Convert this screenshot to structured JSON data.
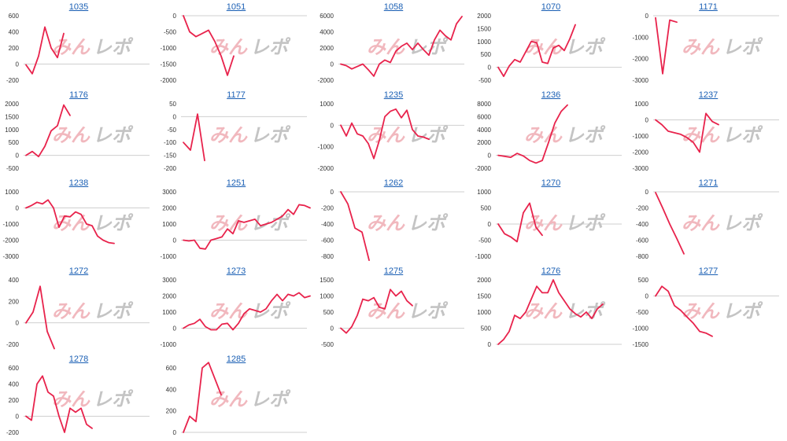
{
  "colors": {
    "line": "#e8234c",
    "link": "#1a5fb4",
    "watermark_pink": "#f1b8be",
    "watermark_gray": "#c4c4c4",
    "axis": "#cfcfcf"
  },
  "watermark": {
    "part1": "みん",
    "part2": "レポ"
  },
  "chart_data": [
    {
      "type": "line",
      "title": "1035",
      "ylim": [
        -200,
        600
      ],
      "yticks": [
        -200,
        0,
        200,
        400,
        600
      ],
      "values": [
        -10,
        -120,
        100,
        460,
        200,
        80,
        380
      ]
    },
    {
      "type": "line",
      "title": "1051",
      "ylim": [
        -2000,
        0
      ],
      "yticks": [
        -2000,
        -1500,
        -1000,
        -500,
        0
      ],
      "values": [
        0,
        -500,
        -650,
        -550,
        -450,
        -800,
        -1250,
        -1850,
        -1250
      ]
    },
    {
      "type": "line",
      "title": "1058",
      "ylim": [
        -2000,
        6000
      ],
      "yticks": [
        -2000,
        0,
        2000,
        4000,
        6000
      ],
      "values": [
        0,
        -200,
        -600,
        -300,
        0,
        -700,
        -1500,
        0,
        500,
        200,
        1600,
        2200,
        2600,
        1800,
        2600,
        1800,
        1100,
        3000,
        4200,
        3500,
        3000,
        5000,
        5900
      ]
    },
    {
      "type": "line",
      "title": "1070",
      "ylim": [
        -500,
        2000
      ],
      "yticks": [
        -500,
        0,
        500,
        1000,
        1500,
        2000
      ],
      "values": [
        0,
        -350,
        50,
        300,
        200,
        600,
        1000,
        950,
        200,
        150,
        750,
        850,
        650,
        1100,
        1650
      ]
    },
    {
      "type": "line",
      "title": "1171",
      "ylim": [
        -3000,
        0
      ],
      "yticks": [
        -3000,
        -2000,
        -1000,
        0
      ],
      "values": [
        -100,
        -2700,
        -200,
        -300
      ]
    },
    {
      "type": "line",
      "title": "1176",
      "ylim": [
        -500,
        2000
      ],
      "yticks": [
        -500,
        0,
        500,
        1000,
        1500,
        2000
      ],
      "values": [
        0,
        150,
        -50,
        350,
        950,
        1150,
        1950,
        1550
      ]
    },
    {
      "type": "line",
      "title": "1177",
      "ylim": [
        -200,
        50
      ],
      "yticks": [
        -200,
        -150,
        -100,
        -50,
        0,
        50
      ],
      "values": [
        -100,
        -130,
        10,
        -170
      ]
    },
    {
      "type": "line",
      "title": "1235",
      "ylim": [
        -2000,
        1000
      ],
      "yticks": [
        -2000,
        -1000,
        0,
        1000
      ],
      "values": [
        0,
        -500,
        100,
        -400,
        -500,
        -850,
        -1550,
        -700,
        400,
        650,
        750,
        350,
        700,
        -200,
        -500,
        -550,
        -650
      ]
    },
    {
      "type": "line",
      "title": "1236",
      "ylim": [
        -2000,
        8000
      ],
      "yticks": [
        -2000,
        0,
        2000,
        4000,
        6000,
        8000
      ],
      "values": [
        0,
        -150,
        -300,
        300,
        -100,
        -800,
        -1200,
        -800,
        2000,
        5000,
        6800,
        7800
      ]
    },
    {
      "type": "line",
      "title": "1237",
      "ylim": [
        -3000,
        1000
      ],
      "yticks": [
        -3000,
        -2000,
        -1000,
        0,
        1000
      ],
      "values": [
        0,
        -300,
        -700,
        -800,
        -900,
        -1100,
        -1400,
        -2000,
        400,
        -100,
        -300
      ]
    },
    {
      "type": "line",
      "title": "1238",
      "ylim": [
        -3000,
        1000
      ],
      "yticks": [
        -3000,
        -2000,
        -1000,
        0,
        1000
      ],
      "values": [
        0,
        150,
        350,
        250,
        500,
        0,
        -1200,
        -500,
        -550,
        -250,
        -400,
        -1000,
        -1100,
        -1750,
        -2000,
        -2150,
        -2200
      ]
    },
    {
      "type": "line",
      "title": "1251",
      "ylim": [
        -1000,
        3000
      ],
      "yticks": [
        -1000,
        0,
        1000,
        2000,
        3000
      ],
      "values": [
        0,
        -50,
        0,
        -500,
        -550,
        0,
        100,
        200,
        700,
        400,
        1200,
        1100,
        1200,
        1300,
        900,
        1000,
        1100,
        1300,
        1500,
        1900,
        1600,
        2200,
        2150,
        2000
      ]
    },
    {
      "type": "line",
      "title": "1262",
      "ylim": [
        -800,
        0
      ],
      "yticks": [
        -800,
        -600,
        -400,
        -200,
        0
      ],
      "values": [
        0,
        -150,
        -450,
        -500,
        -850
      ]
    },
    {
      "type": "line",
      "title": "1270",
      "ylim": [
        -1000,
        1000
      ],
      "yticks": [
        -1000,
        -500,
        0,
        500,
        1000
      ],
      "values": [
        0,
        -300,
        -400,
        -550,
        350,
        650,
        -100,
        -350
      ]
    },
    {
      "type": "line",
      "title": "1271",
      "ylim": [
        -800,
        0
      ],
      "yticks": [
        -800,
        -600,
        -400,
        -200,
        0
      ],
      "values": [
        -10,
        -200,
        -400,
        -580,
        -770
      ]
    },
    {
      "type": "line",
      "title": "1272",
      "ylim": [
        -200,
        400
      ],
      "yticks": [
        -200,
        0,
        200,
        400
      ],
      "values": [
        0,
        100,
        340,
        -80,
        -240
      ]
    },
    {
      "type": "line",
      "title": "1273",
      "ylim": [
        -1000,
        3000
      ],
      "yticks": [
        -1000,
        0,
        1000,
        2000,
        3000
      ],
      "values": [
        0,
        200,
        300,
        550,
        100,
        -100,
        -100,
        250,
        300,
        -100,
        300,
        900,
        1200,
        1100,
        1000,
        1200,
        1700,
        2100,
        1700,
        2100,
        2000,
        2200,
        1900,
        2000
      ]
    },
    {
      "type": "line",
      "title": "1275",
      "ylim": [
        -500,
        1500
      ],
      "yticks": [
        -500,
        0,
        500,
        1000,
        1500
      ],
      "values": [
        0,
        -150,
        50,
        400,
        900,
        850,
        950,
        650,
        600,
        1200,
        1000,
        1150,
        850,
        700
      ]
    },
    {
      "type": "line",
      "title": "1276",
      "ylim": [
        0,
        2000
      ],
      "yticks": [
        0,
        500,
        1000,
        1500,
        2000
      ],
      "values": [
        0,
        150,
        400,
        900,
        800,
        1000,
        1400,
        1800,
        1600,
        1600,
        2000,
        1600,
        1350,
        1100,
        950,
        850,
        1000,
        800,
        1100,
        1250
      ]
    },
    {
      "type": "line",
      "title": "1277",
      "ylim": [
        -1500,
        500
      ],
      "yticks": [
        -1500,
        -1000,
        -500,
        0,
        500
      ],
      "values": [
        0,
        300,
        150,
        -300,
        -450,
        -650,
        -850,
        -1100,
        -1150,
        -1250
      ]
    },
    {
      "type": "line",
      "title": "1278",
      "ylim": [
        -200,
        600
      ],
      "yticks": [
        -200,
        0,
        200,
        400,
        600
      ],
      "values": [
        0,
        -50,
        400,
        500,
        300,
        250,
        0,
        -200,
        100,
        50,
        100,
        -100,
        -150
      ]
    },
    {
      "type": "line",
      "title": "1285",
      "ylim": [
        0,
        600
      ],
      "yticks": [
        0,
        200,
        400,
        600
      ],
      "values": [
        0,
        150,
        100,
        600,
        650,
        500,
        350
      ]
    }
  ]
}
